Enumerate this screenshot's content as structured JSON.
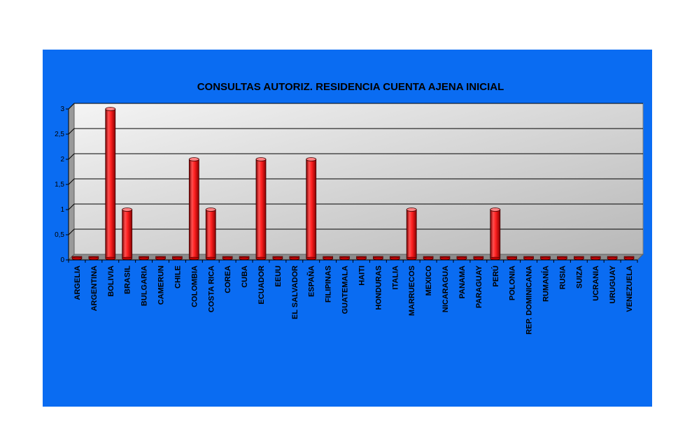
{
  "colors": {
    "background": "#0a6cf2",
    "plot_back": "#c0c0c0",
    "bar_fill": "#e01010",
    "gridline": "#000000",
    "text": "#000000"
  },
  "chart_data": {
    "type": "bar",
    "title": "CONSULTAS AUTORIZ. RESIDENCIA CUENTA AJENA INICIAL",
    "xlabel": "",
    "ylabel": "",
    "ylim": [
      0,
      3
    ],
    "yticks": [
      "0",
      "0,5",
      "1",
      "1,5",
      "2",
      "2,5",
      "3"
    ],
    "grid": true,
    "legend": "none",
    "categories": [
      "ARGELIA",
      "ARGENTINA",
      "BOLIVIA",
      "BRASIL",
      "BULGARIA",
      "CAMERUN",
      "CHILE",
      "COLOMBIA",
      "COSTA RICA",
      "COREA",
      "CUBA",
      "ECUADOR",
      "EEUU",
      "EL SALVADOR",
      "ESPAÑA",
      "FILIPINAS",
      "GUATEMALA",
      "HAITI",
      "HONDURAS",
      "ITALIA",
      "MARRUECOS",
      "MEXICO",
      "NICARAGUA",
      "PANAMA",
      "PARAGUAY",
      "PERÚ",
      "POLONIA",
      "REP. DOMINICANA",
      "RUMANÍA",
      "RUSIA",
      "SUIZA",
      "UCRANIA",
      "URUGUAY",
      "VENEZUELA"
    ],
    "values": [
      0,
      0,
      3,
      1,
      0,
      0,
      0,
      2,
      1,
      0,
      0,
      2,
      0,
      0,
      2,
      0,
      0,
      0,
      0,
      0,
      1,
      0,
      0,
      0,
      0,
      1,
      0,
      0,
      0,
      0,
      0,
      0,
      0,
      0
    ]
  }
}
